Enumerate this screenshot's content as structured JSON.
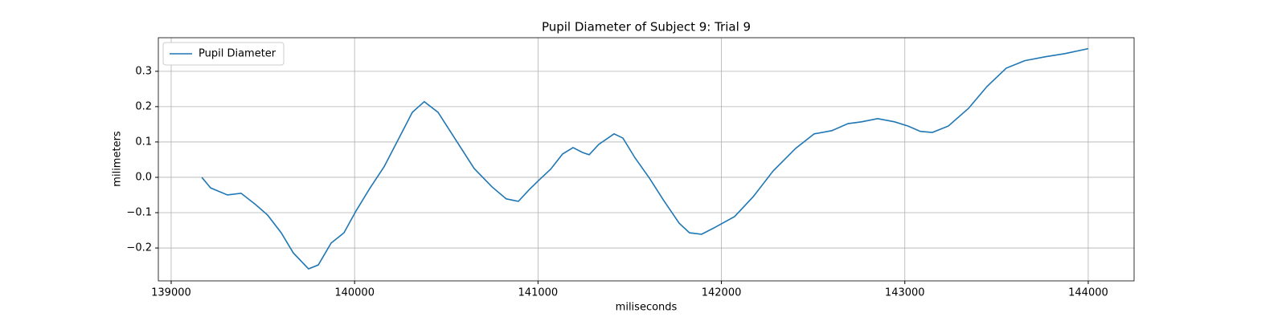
{
  "chart_data": {
    "type": "line",
    "title": "Pupil Diameter of Subject 9: Trial 9",
    "x_label": "miliseconds",
    "y_label": "milimeters",
    "x": [
      139167,
      139215,
      139307,
      139381,
      139460,
      139526,
      139600,
      139666,
      139749,
      139802,
      139872,
      139942,
      140008,
      140082,
      140161,
      140236,
      140315,
      140380,
      140455,
      140534,
      140652,
      140749,
      140827,
      140893,
      140950,
      141003,
      141069,
      141134,
      141191,
      141244,
      141279,
      141331,
      141415,
      141463,
      141529,
      141607,
      141686,
      141770,
      141826,
      141892,
      141967,
      142072,
      142173,
      142282,
      142405,
      142506,
      142602,
      142690,
      142764,
      142852,
      142944,
      143018,
      143084,
      143150,
      143237,
      143347,
      143448,
      143553,
      143654,
      143764,
      143873,
      144000
    ],
    "series": [
      {
        "name": "Pupil Diameter",
        "color": "#1f77b4",
        "values": [
          0.0,
          -0.03,
          -0.05,
          -0.045,
          -0.077,
          -0.107,
          -0.157,
          -0.214,
          -0.259,
          -0.248,
          -0.186,
          -0.157,
          -0.095,
          -0.032,
          0.03,
          0.105,
          0.184,
          0.214,
          0.184,
          0.12,
          0.025,
          -0.027,
          -0.061,
          -0.068,
          -0.036,
          -0.009,
          0.023,
          0.066,
          0.084,
          0.07,
          0.064,
          0.093,
          0.123,
          0.111,
          0.055,
          -0.002,
          -0.066,
          -0.13,
          -0.157,
          -0.161,
          -0.141,
          -0.111,
          -0.055,
          0.018,
          0.082,
          0.123,
          0.132,
          0.152,
          0.157,
          0.166,
          0.157,
          0.145,
          0.13,
          0.127,
          0.145,
          0.195,
          0.257,
          0.309,
          0.33,
          0.341,
          0.35,
          0.364
        ]
      }
    ],
    "xlim": [
      138930,
      144250
    ],
    "ylim": [
      -0.293,
      0.395
    ],
    "xticks": [
      139000,
      140000,
      141000,
      142000,
      143000,
      144000
    ],
    "yticks": [
      {
        "value": -0.2,
        "label": "−0.2"
      },
      {
        "value": -0.1,
        "label": "−0.1"
      },
      {
        "value": 0,
        "label": "0.0"
      },
      0.1,
      0.2,
      0.3
    ],
    "grid": true,
    "legend": "upper-left"
  }
}
